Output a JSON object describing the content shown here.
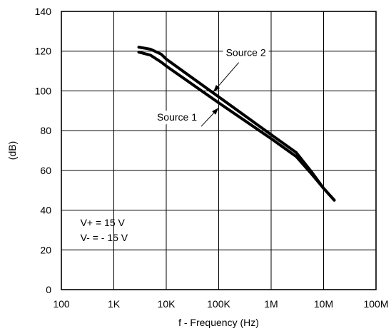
{
  "chart_data": {
    "type": "line",
    "xlabel": "f - Frequency (Hz)",
    "ylabel": "(dB)",
    "xscale": "log",
    "xlim": [
      100,
      100000000
    ],
    "ylim": [
      0,
      140
    ],
    "x_ticks": [
      {
        "value": 100,
        "label": "100"
      },
      {
        "value": 1000,
        "label": "1K"
      },
      {
        "value": 10000,
        "label": "10K"
      },
      {
        "value": 100000,
        "label": "100K"
      },
      {
        "value": 1000000,
        "label": "1M"
      },
      {
        "value": 10000000,
        "label": "10M"
      },
      {
        "value": 100000000,
        "label": "100M"
      }
    ],
    "y_ticks": [
      0,
      20,
      40,
      60,
      80,
      100,
      120,
      140
    ],
    "grid": true,
    "series": [
      {
        "name": "Source 1",
        "points": [
          [
            3000,
            119.5
          ],
          [
            5000,
            118
          ],
          [
            8000,
            114.5
          ],
          [
            10000,
            112.5
          ],
          [
            100000,
            94
          ],
          [
            1000000,
            76
          ],
          [
            3000000,
            67
          ],
          [
            6000000,
            58
          ],
          [
            10000000,
            51
          ],
          [
            16000000,
            45
          ]
        ]
      },
      {
        "name": "Source 2",
        "points": [
          [
            3000,
            122
          ],
          [
            5000,
            121
          ],
          [
            8000,
            118.5
          ],
          [
            10000,
            116
          ],
          [
            100000,
            97
          ],
          [
            1000000,
            78
          ],
          [
            3000000,
            69
          ],
          [
            6000000,
            59
          ],
          [
            10000000,
            51
          ],
          [
            16000000,
            45
          ]
        ]
      }
    ],
    "annotations": [
      {
        "text": "Source 2",
        "x": 330000,
        "y": 117.5,
        "arrow_to": [
          79000,
          99.5
        ]
      },
      {
        "text": "Source 1",
        "x": 16000,
        "y": 85,
        "arrow_to": [
          100000,
          91.5
        ]
      },
      {
        "text": "V+ = 15 V",
        "x": 230,
        "y": 32
      },
      {
        "text": "V- = - 15 V",
        "x": 230,
        "y": 24.5
      }
    ]
  }
}
